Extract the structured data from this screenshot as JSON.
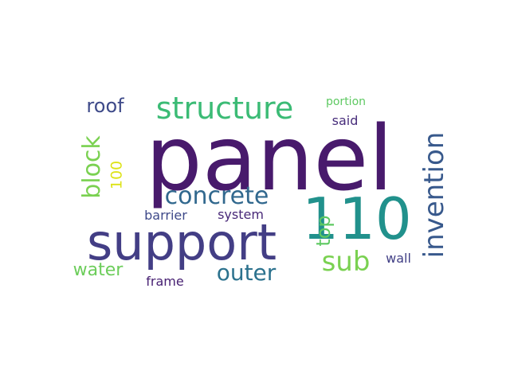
{
  "words": {
    "panel": {
      "text": "panel",
      "color": "#481a6c"
    },
    "n110": {
      "text": "110",
      "color": "#21918c"
    },
    "support": {
      "text": "support",
      "color": "#433e85"
    },
    "structure": {
      "text": "structure",
      "color": "#3bbb75"
    },
    "invention": {
      "text": "invention",
      "color": "#38598c"
    },
    "concrete": {
      "text": "concrete",
      "color": "#31688e"
    },
    "block": {
      "text": "block",
      "color": "#7ad151"
    },
    "sub": {
      "text": "sub",
      "color": "#7ad151"
    },
    "outer": {
      "text": "outer",
      "color": "#2c728e"
    },
    "roof": {
      "text": "roof",
      "color": "#3e4a89"
    },
    "water": {
      "text": "water",
      "color": "#6ccd5a"
    },
    "top": {
      "text": "top",
      "color": "#5ec962"
    },
    "n100": {
      "text": "100",
      "color": "#dde318"
    },
    "barrier": {
      "text": "barrier",
      "color": "#3e4989"
    },
    "system": {
      "text": "system",
      "color": "#482878"
    },
    "frame": {
      "text": "frame",
      "color": "#482173"
    },
    "wall": {
      "text": "wall",
      "color": "#424086"
    },
    "said": {
      "text": "said",
      "color": "#472d7b"
    },
    "portion": {
      "text": "portion",
      "color": "#5ec962"
    }
  }
}
